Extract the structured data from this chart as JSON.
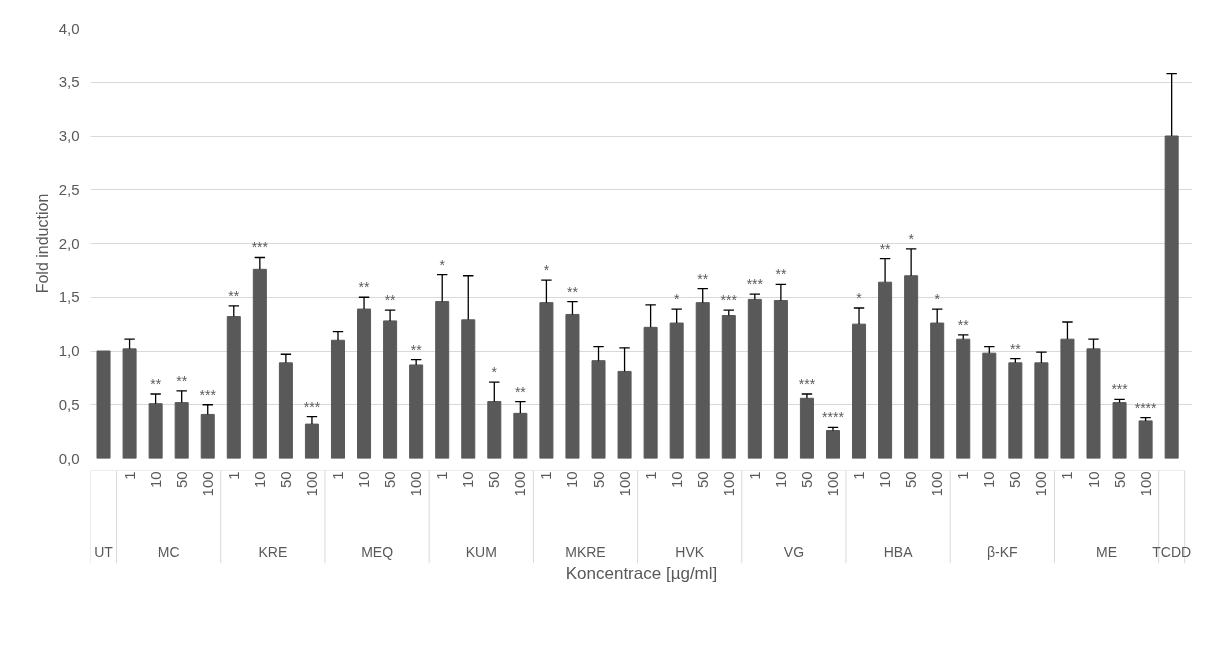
{
  "chart_data": {
    "type": "bar",
    "xlabel": "Koncentrace [µg/ml]",
    "ylabel": "Fold induction",
    "categories": [
      null,
      "1",
      "10",
      "50",
      "100",
      "1",
      "10",
      "50",
      "100",
      "1",
      "10",
      "50",
      "100",
      "1",
      "10",
      "50",
      "100",
      "1",
      "10",
      "50",
      "100",
      "1",
      "10",
      "50",
      "100",
      "1",
      "10",
      "50",
      "100",
      "1",
      "10",
      "50",
      "100",
      "1",
      "10",
      "50",
      "100",
      "1",
      "10",
      "50",
      "100",
      null
    ],
    "annotations": [
      "UT",
      "MC",
      "KRE",
      "MEQ",
      "KUM",
      "MKRE",
      "HVK",
      "VG",
      "HBA",
      "β-KF",
      "ME",
      "TCDD"
    ],
    "series": [
      {
        "color": "#595959",
        "values": [
          1.0,
          1.02,
          0.51,
          0.52,
          0.41,
          1.32,
          1.76,
          0.89,
          0.32,
          1.1,
          1.39,
          1.28,
          0.87,
          1.46,
          1.29,
          0.53,
          0.42,
          1.45,
          1.34,
          0.91,
          0.81,
          1.22,
          1.26,
          1.45,
          1.33,
          1.48,
          1.47,
          0.56,
          0.26,
          1.25,
          1.64,
          1.7,
          1.26,
          1.11,
          0.98,
          0.89,
          0.89,
          1.11,
          1.02,
          0.52,
          0.35,
          3.0
        ],
        "errors": [
          null,
          [
            1.02,
            1.11
          ],
          [
            0.51,
            0.6
          ],
          [
            0.52,
            0.63
          ],
          [
            0.41,
            0.5
          ],
          [
            1.32,
            1.42
          ],
          [
            1.76,
            1.87
          ],
          [
            0.89,
            0.97
          ],
          [
            0.32,
            0.39
          ],
          [
            1.1,
            1.18
          ],
          [
            1.39,
            1.5
          ],
          [
            1.28,
            1.38
          ],
          [
            0.87,
            0.92
          ],
          [
            1.46,
            1.71
          ],
          [
            1.29,
            1.7
          ],
          [
            0.53,
            0.71
          ],
          [
            0.42,
            0.53
          ],
          [
            1.45,
            1.66
          ],
          [
            1.34,
            1.46
          ],
          [
            0.91,
            1.04
          ],
          [
            0.81,
            1.03
          ],
          [
            1.22,
            1.43
          ],
          [
            1.26,
            1.39
          ],
          [
            1.45,
            1.58
          ],
          [
            1.33,
            1.38
          ],
          [
            1.48,
            1.53
          ],
          [
            1.47,
            1.62
          ],
          [
            0.56,
            0.6
          ],
          [
            0.26,
            0.29
          ],
          [
            1.25,
            1.4
          ],
          [
            1.64,
            1.86
          ],
          [
            1.7,
            1.95
          ],
          [
            1.26,
            1.39
          ],
          [
            1.11,
            1.15
          ],
          [
            0.98,
            1.04
          ],
          [
            0.89,
            0.93
          ],
          [
            0.89,
            0.99
          ],
          [
            1.11,
            1.27
          ],
          [
            1.02,
            1.11
          ],
          [
            0.52,
            0.55
          ],
          [
            0.35,
            0.38
          ],
          [
            3.0,
            3.58
          ]
        ],
        "value_labels": [
          null,
          null,
          "**",
          "**",
          "***",
          "**",
          "***",
          null,
          "***",
          null,
          "**",
          "**",
          "**",
          "*",
          null,
          "*",
          "**",
          "*",
          "**",
          null,
          null,
          null,
          "*",
          "**",
          "***",
          "***",
          "**",
          "***",
          "****",
          "*",
          "**",
          "*",
          "*",
          "**",
          null,
          "**",
          null,
          null,
          null,
          "***",
          "****",
          null
        ]
      }
    ],
    "ylim": [
      0,
      4.0
    ],
    "yticks": [
      {
        "value": 0,
        "label": "0,0"
      },
      {
        "value": 0.5,
        "label": "0,5"
      },
      {
        "value": 1,
        "label": "1,0"
      },
      {
        "value": 1.5,
        "label": "1,5"
      },
      {
        "value": 2,
        "label": "2,0"
      },
      {
        "value": 2.5,
        "label": "2,5"
      },
      {
        "value": 3,
        "label": "3,0"
      },
      {
        "value": 3.5,
        "label": "3,5"
      },
      {
        "value": 4,
        "label": "4,0"
      }
    ],
    "grid": "y"
  }
}
